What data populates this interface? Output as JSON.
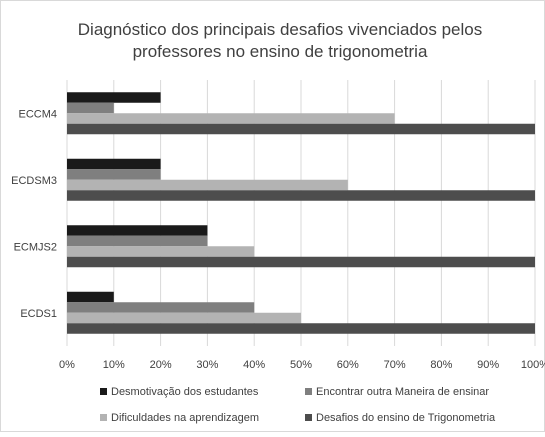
{
  "chart_data": {
    "type": "bar",
    "orientation": "horizontal",
    "title_lines": [
      "Diagnóstico dos principais desafios vivenciados pelos",
      "professores no ensino de trigonometria"
    ],
    "categories": [
      "ECCM4",
      "ECDSM3",
      "ECMJS2",
      "ECDS1"
    ],
    "series": [
      {
        "name": "Desmotivação dos estudantes",
        "color": "#1a1a1a",
        "values": [
          20,
          20,
          30,
          10
        ]
      },
      {
        "name": "Encontrar outra Maneira de ensinar",
        "color": "#7f7f7f",
        "values": [
          10,
          20,
          30,
          40
        ]
      },
      {
        "name": "Dificuldades na aprendizagem",
        "color": "#b3b3b3",
        "values": [
          70,
          60,
          40,
          50
        ]
      },
      {
        "name": "Desafios do ensino de Trigonometria",
        "color": "#4d4d4d",
        "values": [
          100,
          100,
          100,
          100
        ]
      }
    ],
    "x_ticks": [
      "0%",
      "10%",
      "20%",
      "30%",
      "40%",
      "50%",
      "60%",
      "70%",
      "80%",
      "90%",
      "100%"
    ],
    "xlim": [
      0,
      100
    ],
    "grid": true,
    "legend_position": "bottom"
  }
}
